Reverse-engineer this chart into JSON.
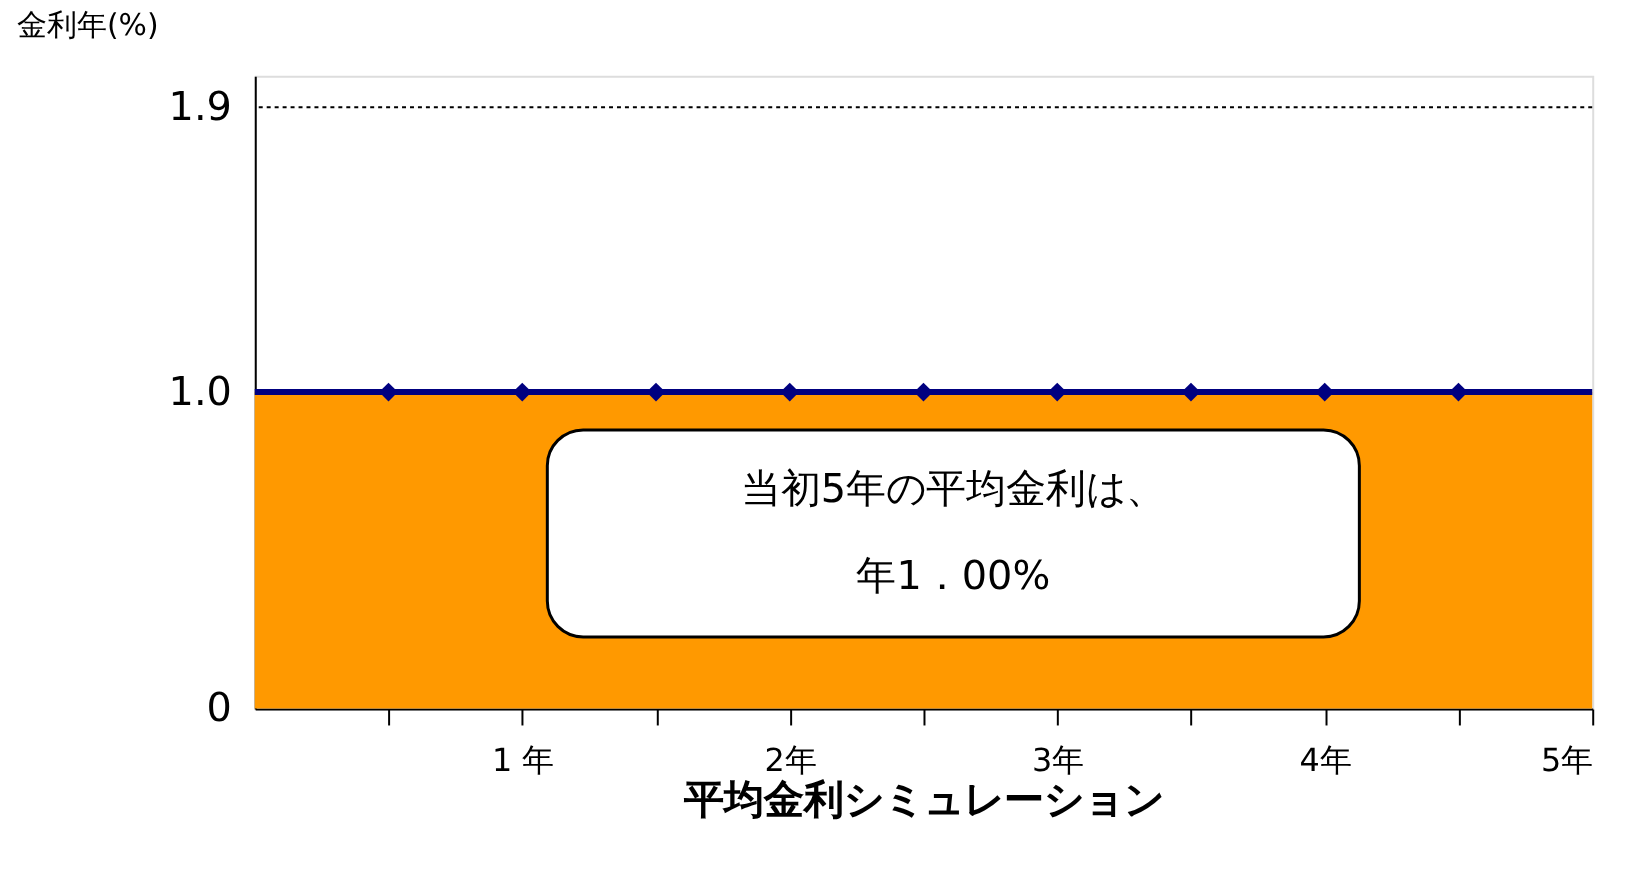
{
  "chart_data": {
    "type": "area",
    "xlabel": "平均金利シミュレーション",
    "ylabel": "金利年(%)",
    "series": [
      {
        "color": "#ff9900",
        "x": [
          0,
          5
        ],
        "values": [
          1.0,
          1.0
        ]
      },
      {
        "type": "line",
        "color": "#000080",
        "x": [
          0,
          5
        ],
        "values": [
          1.0,
          1.0
        ],
        "marker": "none"
      },
      {
        "type": "scatter",
        "color": "#000080",
        "x": [
          0.5,
          1,
          1.5,
          2,
          2.5,
          3,
          3.5,
          4,
          4.5
        ],
        "values": [
          1.0,
          1.0,
          1.0,
          1.0,
          1.0,
          1.0,
          1.0,
          1.0,
          1.0
        ],
        "marker": "diamond"
      }
    ],
    "xlim": [
      0,
      5
    ],
    "xticks": [
      {
        "value": 0.5,
        "label": null
      },
      {
        "value": 1,
        "label": "1 年"
      },
      {
        "value": 1.5,
        "label": null
      },
      {
        "value": 2,
        "label": "2年"
      },
      {
        "value": 2.5,
        "label": null
      },
      {
        "value": 3,
        "label": "3年"
      },
      {
        "value": 3.5,
        "label": null
      },
      {
        "value": 4,
        "label": "4年"
      },
      {
        "value": 4.5,
        "label": null
      },
      {
        "value": 5,
        "label": "5年"
      }
    ],
    "ylim": [
      0,
      2.0
    ],
    "yticks": [
      {
        "value": 0,
        "label": "0"
      },
      {
        "value": 1.0,
        "label": "1.0"
      },
      {
        "value": 1.9,
        "label": "1.9"
      }
    ],
    "ref_lines": [
      {
        "axis": "y",
        "value": 1.9,
        "line_style": "dotted",
        "color": "#000000"
      }
    ],
    "annotations": [
      "当初5年の平均金利は、",
      "年1．00%"
    ],
    "grid": false
  }
}
